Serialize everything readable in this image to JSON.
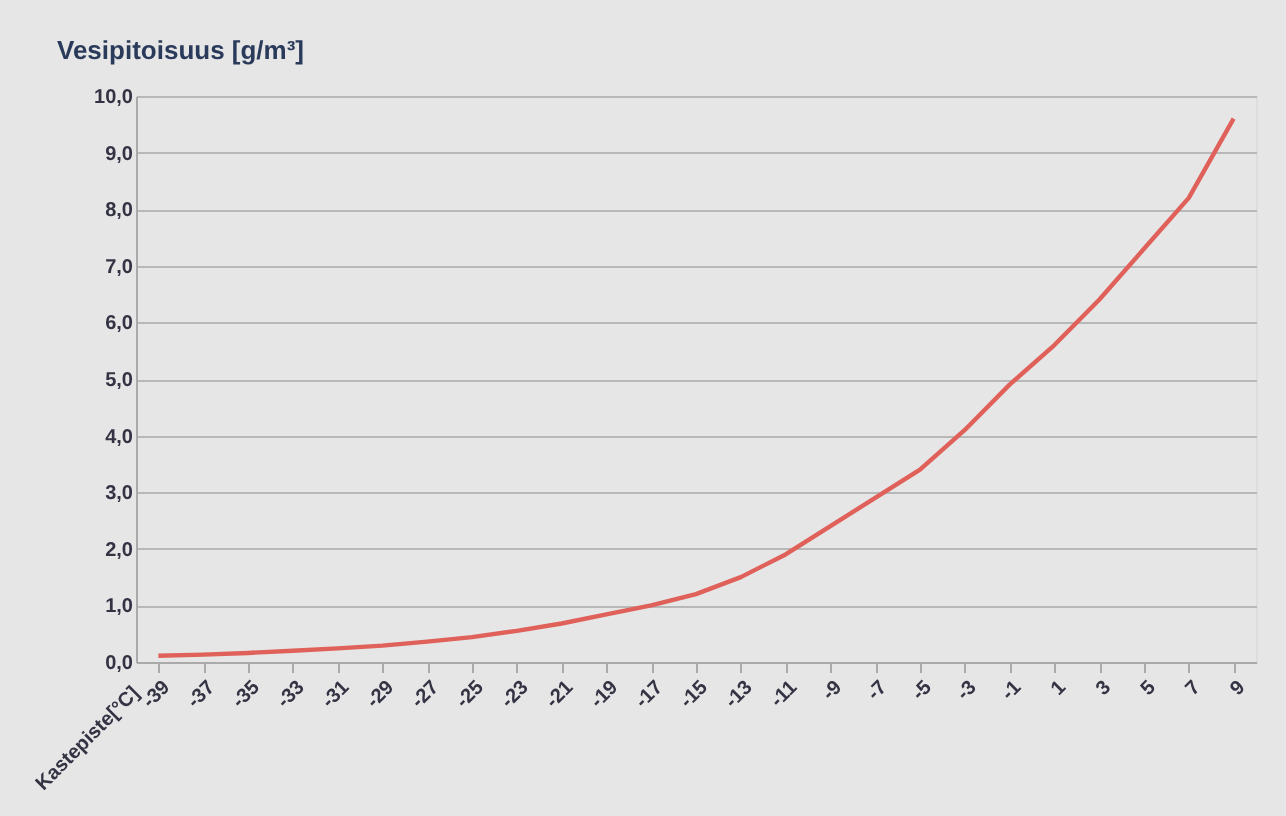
{
  "chart_data": {
    "type": "line",
    "xlabel": "Kastepiste[°C]",
    "ylabel": "Vesipitoisuus [g/m³]",
    "categories": [
      "-39",
      "-37",
      "-35",
      "-33",
      "-31",
      "-29",
      "-27",
      "-25",
      "-23",
      "-21",
      "-19",
      "-17",
      "-15",
      "-13",
      "-11",
      "-9",
      "-7",
      "-5",
      "-3",
      "-1",
      "1",
      "3",
      "5",
      "7",
      "9"
    ],
    "series": [
      {
        "color": "#e0605a",
        "values": [
          0.11,
          0.13,
          0.16,
          0.2,
          0.24,
          0.29,
          0.36,
          0.44,
          0.55,
          0.68,
          0.84,
          1.0,
          1.2,
          1.5,
          1.9,
          2.4,
          2.9,
          3.4,
          4.1,
          4.9,
          5.6,
          6.4,
          7.3,
          8.2,
          9.6
        ]
      }
    ],
    "ylim": [
      0,
      10
    ],
    "yticks": [
      {
        "value": 0,
        "label": "0,0"
      },
      {
        "value": 1,
        "label": "1,0"
      },
      {
        "value": 2,
        "label": "2,0"
      },
      {
        "value": 3,
        "label": "3,0"
      },
      {
        "value": 4,
        "label": "4,0"
      },
      {
        "value": 5,
        "label": "5,0"
      },
      {
        "value": 6,
        "label": "6,0"
      },
      {
        "value": 7,
        "label": "7,0"
      },
      {
        "value": 8,
        "label": "8,0"
      },
      {
        "value": 9,
        "label": "9,0"
      },
      {
        "value": 10,
        "label": "10,0"
      }
    ],
    "grid": "y",
    "marker": "none",
    "line_style": "solid"
  }
}
